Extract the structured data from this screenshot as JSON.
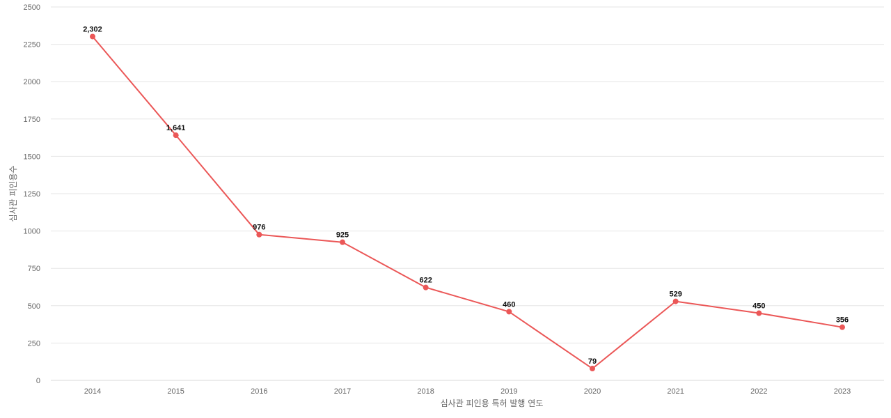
{
  "chart_data": {
    "type": "line",
    "title": "",
    "xlabel": "심사관 피인용 특허 발행 연도",
    "ylabel": "심사관 피인용수",
    "x": [
      "2014",
      "2015",
      "2016",
      "2017",
      "2018",
      "2019",
      "2020",
      "2021",
      "2022",
      "2023"
    ],
    "series": [
      {
        "values": [
          2302,
          1641,
          976,
          925,
          622,
          460,
          79,
          529,
          450,
          356
        ],
        "labels": [
          "2,302",
          "1,641",
          "976",
          "925",
          "622",
          "460",
          "79",
          "529",
          "450",
          "356"
        ],
        "color": "#eb5757"
      }
    ],
    "ylim": [
      0,
      2500
    ],
    "yticks": [
      0,
      250,
      500,
      750,
      1000,
      1250,
      1500,
      1750,
      2000,
      2250,
      2500
    ],
    "grid": true,
    "legend": "none"
  }
}
